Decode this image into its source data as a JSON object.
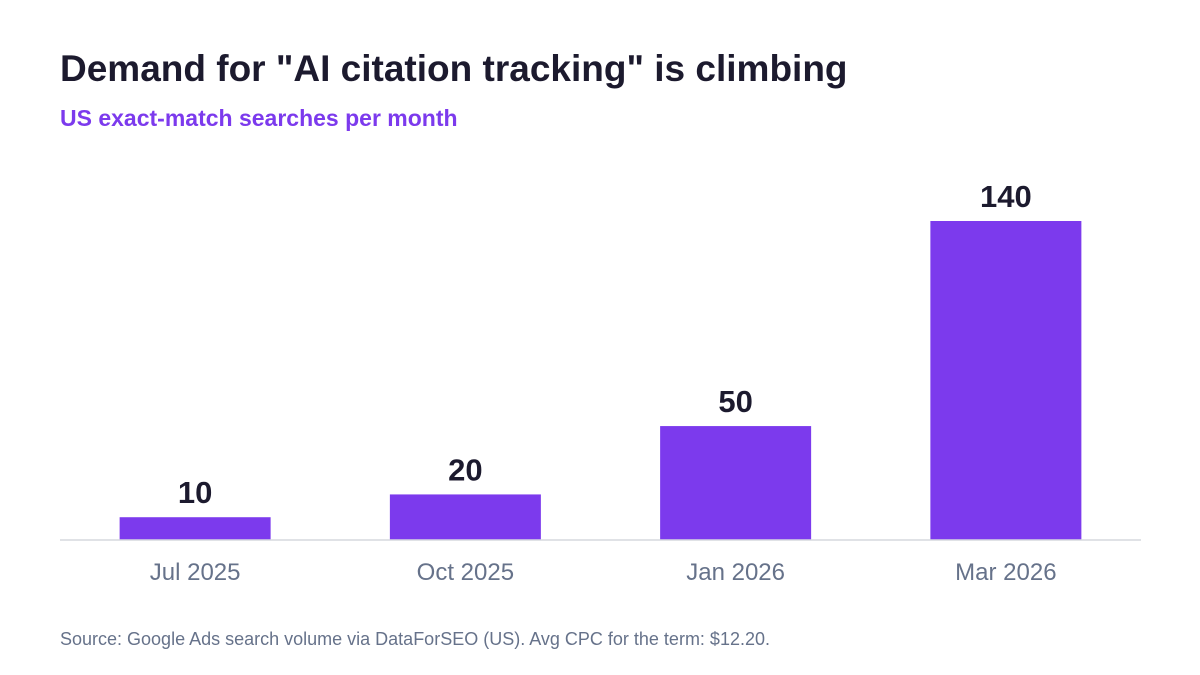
{
  "header": {
    "title": "Demand for \"AI citation tracking\" is climbing",
    "subtitle": "US exact-match searches per month"
  },
  "footer": {
    "source": "Source: Google Ads search volume via DataForSEO (US). Avg CPC for the term: $12.20."
  },
  "chart_data": {
    "type": "bar",
    "title": "Demand for \"AI citation tracking\" is climbing",
    "subtitle": "US exact-match searches per month",
    "categories": [
      "Jul 2025",
      "Oct 2025",
      "Jan 2026",
      "Mar 2026"
    ],
    "values": [
      10,
      20,
      50,
      140
    ],
    "data_labels": [
      "10",
      "20",
      "50",
      "140"
    ],
    "xlabel": "",
    "ylabel": "",
    "ylim": [
      0,
      140
    ],
    "grid": false,
    "legend": "none",
    "colors": {
      "bar": "#7c3aed",
      "value_label": "#1c1a2e",
      "tick_label": "#66728a",
      "baseline": "#d5d8de"
    }
  }
}
